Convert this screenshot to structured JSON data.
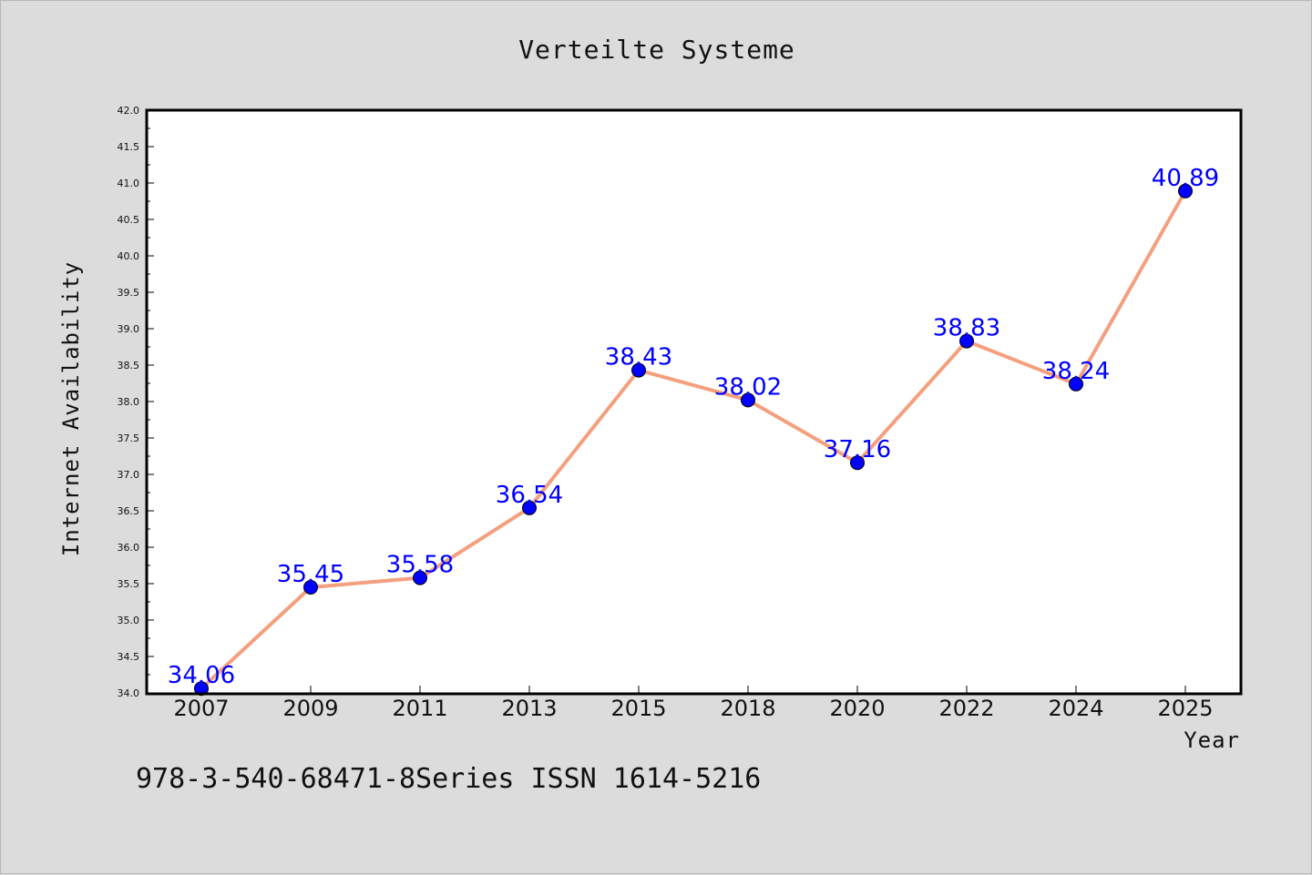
{
  "chart_data": {
    "type": "line",
    "title": "Verteilte Systeme",
    "xlabel": "Year",
    "ylabel": "Internet Availability",
    "categories": [
      "2007",
      "2009",
      "2011",
      "2013",
      "2015",
      "2018",
      "2020",
      "2022",
      "2024",
      "2025"
    ],
    "series": [
      {
        "values": [
          34.06,
          35.45,
          35.58,
          36.54,
          38.43,
          38.02,
          37.16,
          38.83,
          38.24,
          40.89
        ],
        "labels": [
          "34.06",
          "35.45",
          "35.58",
          "36.54",
          "38.43",
          "38.02",
          "37.16",
          "38.83",
          "38.24",
          "40.89"
        ],
        "line_color": "#f4a07e",
        "marker_color": "#0000ff"
      }
    ],
    "ylim": [
      34.0,
      42.0
    ],
    "yticks": [
      "34.0",
      "34.5",
      "35.0",
      "35.5",
      "36.0",
      "36.5",
      "37.0",
      "37.5",
      "38.0",
      "38.5",
      "39.0",
      "39.5",
      "40.0",
      "40.5",
      "41.0",
      "41.5",
      "42.0"
    ],
    "grid": false,
    "legend": "none"
  },
  "footer": {
    "text": "978-3-540-68471-8Series ISSN 1614-5216"
  }
}
